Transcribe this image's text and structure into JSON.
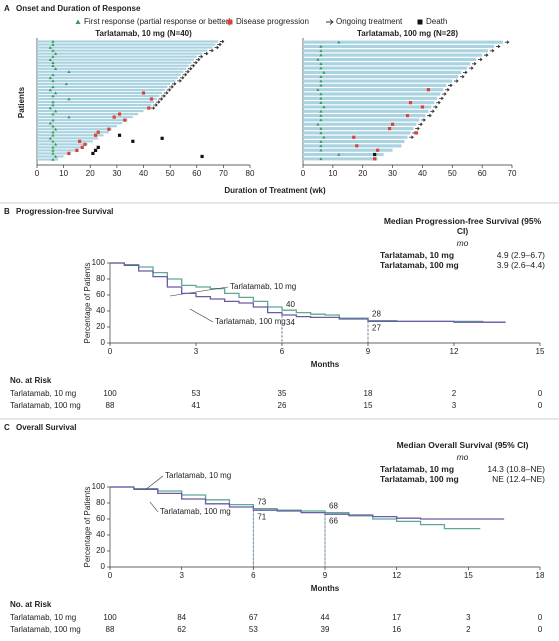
{
  "chart_data": [
    {
      "type": "swimmer",
      "panel": "A",
      "panel_title": "Onset and Duration of Response",
      "legend": [
        {
          "name": "First response (partial response or better)",
          "color": "#3a9a5a",
          "marker": "triangle"
        },
        {
          "name": "Disease progression",
          "color": "#d9413a",
          "marker": "square"
        },
        {
          "name": "Ongoing treatment",
          "color": "#333333",
          "marker": "arrow"
        },
        {
          "name": "Death",
          "color": "#111111",
          "marker": "square"
        }
      ],
      "title": "Tarlatamab, 10 mg (N=40)",
      "ylabel": "Patients",
      "xlabel": "Duration of Treatment (wk)",
      "xlim": [
        0,
        80
      ],
      "xticks": [
        0,
        10,
        20,
        30,
        40,
        50,
        60,
        70,
        80
      ],
      "color": "#a9d3e0",
      "duration": [
        68,
        67,
        66,
        64,
        62,
        60,
        59,
        58,
        57,
        56,
        55,
        54,
        53,
        52,
        50,
        49,
        48,
        47,
        46,
        45,
        44,
        43,
        42,
        40,
        38,
        36,
        34,
        32,
        30,
        28,
        27,
        25,
        23,
        21,
        19,
        17,
        15,
        12,
        10,
        8
      ],
      "first_response": [
        6,
        6,
        5,
        6,
        7,
        6,
        5,
        6,
        6,
        7,
        12,
        6,
        5,
        6,
        11,
        6,
        5,
        7,
        6,
        12,
        6,
        6,
        5,
        7,
        6,
        12,
        6,
        5,
        6,
        7,
        6,
        6,
        5,
        6,
        7,
        6,
        6,
        6,
        7,
        6
      ],
      "ongoing": [
        true,
        true,
        true,
        true,
        true,
        true,
        true,
        true,
        true,
        true,
        true,
        true,
        true,
        true,
        true,
        true,
        true,
        true,
        true,
        true,
        true,
        true,
        true,
        false,
        false,
        false,
        false,
        false,
        false,
        false,
        false,
        false,
        false,
        false,
        false,
        false,
        false,
        false,
        false,
        false
      ],
      "progression": {
        "patient": [
          17,
          19,
          22,
          24,
          25,
          26,
          29,
          30,
          31,
          33,
          34,
          35,
          36,
          37
        ],
        "x": [
          40,
          43,
          42,
          31,
          29,
          33,
          27,
          23,
          22,
          16,
          18,
          17,
          15,
          12
        ]
      },
      "death": {
        "patient": [
          31,
          32,
          33,
          35,
          36,
          37,
          38
        ],
        "x": [
          31,
          47,
          36,
          23,
          22,
          21,
          62
        ]
      }
    },
    {
      "type": "swimmer",
      "title": "Tarlatamab, 100 mg (N=28)",
      "xlim": [
        0,
        70
      ],
      "xticks": [
        0,
        10,
        20,
        30,
        40,
        50,
        60,
        70
      ],
      "color": "#a9d3e0",
      "duration": [
        67,
        64,
        62,
        60,
        58,
        56,
        55,
        53,
        52,
        50,
        48,
        47,
        46,
        45,
        44,
        43,
        42,
        41,
        39,
        38,
        37,
        36,
        35,
        34,
        33,
        30,
        27,
        25
      ],
      "first_response": [
        12,
        6,
        6,
        6,
        5,
        6,
        6,
        7,
        6,
        6,
        6,
        5,
        6,
        6,
        6,
        7,
        6,
        6,
        6,
        5,
        6,
        6,
        7,
        6,
        6,
        6,
        12,
        6
      ],
      "ongoing": [
        true,
        true,
        true,
        true,
        true,
        true,
        true,
        true,
        true,
        true,
        true,
        true,
        true,
        true,
        true,
        true,
        true,
        true,
        true,
        true,
        true,
        true,
        true,
        false,
        false,
        false,
        false,
        false
      ],
      "progression": {
        "patient": [
          11,
          14,
          15,
          17,
          19,
          20,
          21,
          22,
          24,
          25,
          27
        ],
        "x": [
          42,
          36,
          40,
          35,
          30,
          29,
          38,
          17,
          18,
          25,
          24
        ]
      },
      "death": {
        "patient": [
          26
        ],
        "x": [
          24
        ]
      }
    },
    {
      "type": "km",
      "panel": "B",
      "panel_title": "Progression-free Survival",
      "ylabel": "Percentage of Patients",
      "xlabel": "Months",
      "xlim": [
        0,
        15
      ],
      "xticks": [
        0,
        3,
        6,
        9,
        12,
        15
      ],
      "ylim": [
        0,
        100
      ],
      "yticks": [
        0,
        20,
        40,
        60,
        80,
        100
      ],
      "median": {
        "title": "Median Progression-free Survival (95% CI)",
        "unit": "mo"
      },
      "risk_title": "No. at Risk",
      "series": [
        {
          "name": "Tarlatamab, 10 mg",
          "color": "#5fa896",
          "median": "4.9 (2.9–6.7)",
          "x": [
            0,
            0.5,
            1,
            1.5,
            2,
            2.5,
            3,
            3.5,
            4,
            4.5,
            5,
            5.5,
            6,
            6.5,
            7,
            7.5,
            8,
            9,
            10,
            11,
            12,
            13,
            13.8
          ],
          "values": [
            100,
            98,
            95,
            88,
            80,
            72,
            70,
            68,
            62,
            57,
            52,
            45,
            41,
            38,
            36,
            35,
            31,
            28,
            27,
            27,
            27,
            26,
            26
          ],
          "at_risk": [
            100,
            53,
            35,
            18,
            2,
            0
          ]
        },
        {
          "name": "Tarlatamab, 100 mg",
          "color": "#6b5aa8",
          "median": "3.9 (2.6–4.4)",
          "x": [
            0,
            0.5,
            1,
            1.5,
            2,
            2.5,
            3,
            3.5,
            4,
            4.5,
            5,
            5.5,
            6,
            6.5,
            7,
            8,
            9,
            10,
            11,
            12,
            13,
            13.8
          ],
          "values": [
            100,
            97,
            90,
            83,
            70,
            62,
            58,
            55,
            52,
            50,
            45,
            38,
            35,
            33,
            32,
            30,
            27,
            27,
            27,
            26,
            26,
            26
          ],
          "at_risk": [
            88,
            41,
            26,
            15,
            3,
            0
          ]
        }
      ],
      "annotations": [
        {
          "series": 0,
          "x": 6,
          "value": 40
        },
        {
          "series": 1,
          "x": 6,
          "value": 34
        },
        {
          "series": 0,
          "x": 9,
          "value": 28
        },
        {
          "series": 1,
          "x": 9,
          "value": 27
        }
      ]
    },
    {
      "type": "km",
      "panel": "C",
      "panel_title": "Overall Survival",
      "ylabel": "Percentage of Patients",
      "xlabel": "Months",
      "xlim": [
        0,
        18
      ],
      "xticks": [
        0,
        3,
        6,
        9,
        12,
        15,
        18
      ],
      "ylim": [
        0,
        100
      ],
      "yticks": [
        0,
        20,
        40,
        60,
        80,
        100
      ],
      "median": {
        "title": "Median Overall Survival (95% CI)",
        "unit": "mo"
      },
      "risk_title": "No. at Risk",
      "series": [
        {
          "name": "Tarlatamab, 10 mg",
          "color": "#5fa896",
          "median": "14.3 (10.8–NE)",
          "x": [
            0,
            1,
            2,
            3,
            4,
            5,
            6,
            7,
            8,
            9,
            10,
            11,
            12,
            13,
            14,
            15,
            15.5
          ],
          "values": [
            100,
            98,
            95,
            90,
            84,
            78,
            73,
            71,
            70,
            68,
            64,
            60,
            57,
            53,
            48,
            48,
            48
          ],
          "at_risk": [
            100,
            84,
            67,
            44,
            17,
            3,
            0
          ]
        },
        {
          "name": "Tarlatamab, 100 mg",
          "color": "#6b5aa8",
          "median": "NE (12.4–NE)",
          "x": [
            0,
            1,
            2,
            3,
            4,
            5,
            6,
            7,
            8,
            9,
            10,
            11,
            12,
            13,
            14,
            15,
            16.5
          ],
          "values": [
            100,
            97,
            92,
            85,
            79,
            75,
            71,
            70,
            68,
            66,
            65,
            63,
            61,
            60,
            60,
            60,
            60
          ],
          "at_risk": [
            88,
            62,
            53,
            39,
            16,
            2,
            0
          ]
        }
      ],
      "annotations": [
        {
          "series": 0,
          "x": 6,
          "value": 73
        },
        {
          "series": 1,
          "x": 6,
          "value": 71
        },
        {
          "series": 0,
          "x": 9,
          "value": 68
        },
        {
          "series": 1,
          "x": 9,
          "value": 66
        }
      ]
    }
  ]
}
